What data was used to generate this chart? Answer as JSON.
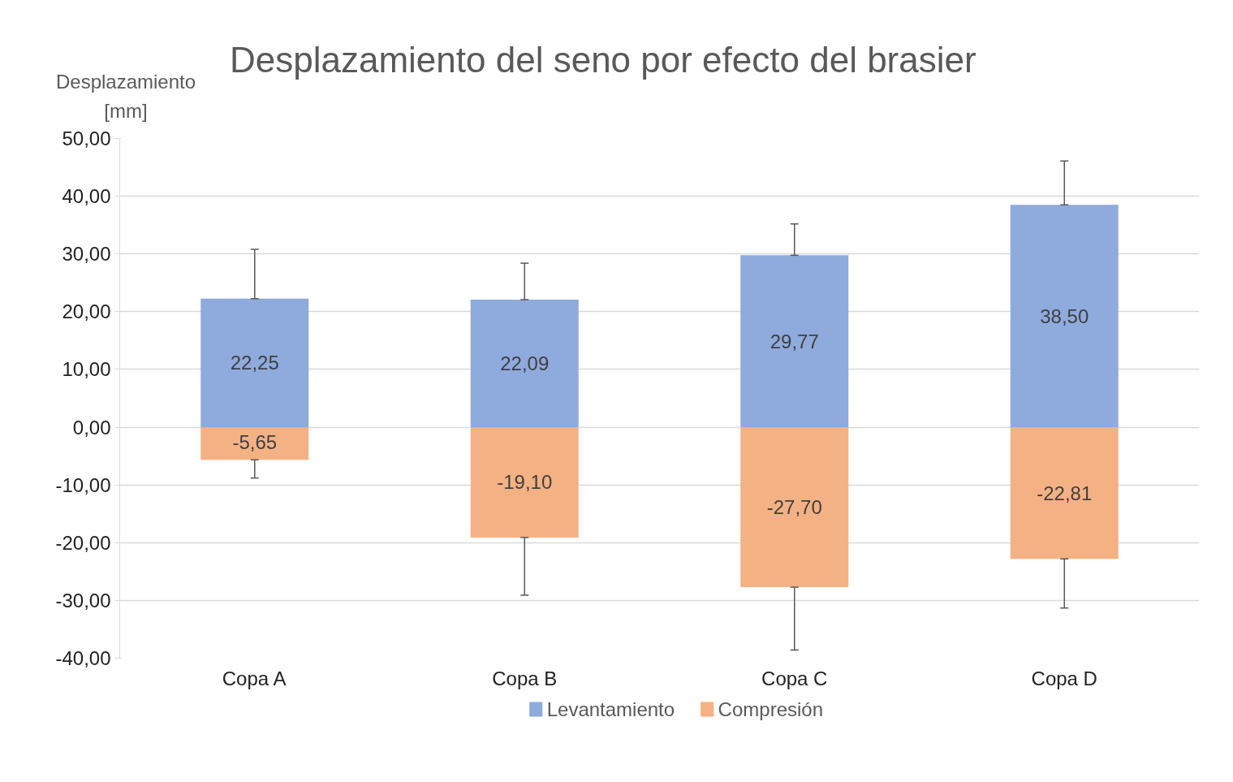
{
  "chart_data": {
    "type": "bar",
    "title": "Desplazamiento del seno por efecto del brasier",
    "ylabel": "Desplazamiento [mm]",
    "categories": [
      "Copa A",
      "Copa B",
      "Copa C",
      "Copa D"
    ],
    "stacked": true,
    "series": [
      {
        "name": "Levantamiento",
        "color": "#8faadc",
        "values": [
          22.25,
          22.09,
          29.77,
          38.5
        ],
        "errors": [
          [
            22.25,
            30.8
          ],
          [
            22.09,
            28.4
          ],
          [
            29.77,
            35.2
          ],
          [
            38.5,
            46.1
          ]
        ]
      },
      {
        "name": "Compresión",
        "color": "#f4b183",
        "values": [
          -5.65,
          -19.1,
          -27.7,
          -22.81
        ],
        "errors": [
          [
            -8.8,
            -5.65
          ],
          [
            -29.1,
            -19.1
          ],
          [
            -38.6,
            -27.7
          ],
          [
            -31.3,
            -22.81
          ]
        ]
      }
    ],
    "value_labels": [
      [
        "22,25",
        "22,09",
        "29,77",
        "38,50"
      ],
      [
        "-5,65",
        "-19,10",
        "-27,70",
        "-22,81"
      ]
    ],
    "ylim": [
      -40,
      50
    ],
    "yticks": [
      {
        "value": -40,
        "label": "-40,00"
      },
      {
        "value": -30,
        "label": "-30,00"
      },
      {
        "value": -20,
        "label": "-20,00"
      },
      {
        "value": -10,
        "label": "-10,00"
      },
      {
        "value": 0,
        "label": "0,00"
      },
      {
        "value": 10,
        "label": "10,00"
      },
      {
        "value": 20,
        "label": "20,00"
      },
      {
        "value": 30,
        "label": "30,00"
      },
      {
        "value": 40,
        "label": "40,00"
      },
      {
        "value": 50,
        "label": "50,00"
      }
    ],
    "grid": "y",
    "legend": "bottom"
  }
}
